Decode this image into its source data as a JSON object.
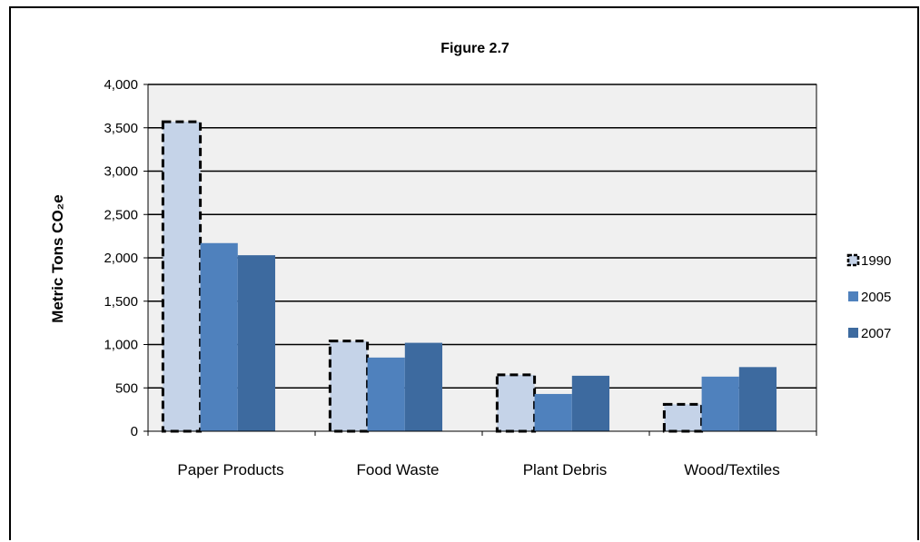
{
  "chart_data": {
    "type": "bar",
    "title": "Figure 2.7",
    "ylabel": "Metric Tons CO₂e",
    "xlabel": "",
    "categories": [
      "Paper Products",
      "Food Waste",
      "Plant Debris",
      "Wood/Textiles"
    ],
    "series": [
      {
        "name": "1990",
        "values": [
          3570,
          1040,
          650,
          310
        ],
        "color": "#c5d3e8",
        "style": "dashed-outline"
      },
      {
        "name": "2005",
        "values": [
          2170,
          850,
          430,
          630
        ],
        "color": "#4f81bd"
      },
      {
        "name": "2007",
        "values": [
          2030,
          1020,
          640,
          740
        ],
        "color": "#3d6a9f"
      }
    ],
    "ylim": [
      0,
      4000
    ],
    "yticks": [
      0,
      500,
      1000,
      1500,
      2000,
      2500,
      3000,
      3500,
      4000
    ],
    "ytick_labels": [
      "0",
      "500",
      "1,000",
      "1,500",
      "2,000",
      "2,500",
      "3,000",
      "3,500",
      "4,000"
    ],
    "grid": true,
    "plot_background": "#f0f0f0",
    "legend_position": "right"
  }
}
